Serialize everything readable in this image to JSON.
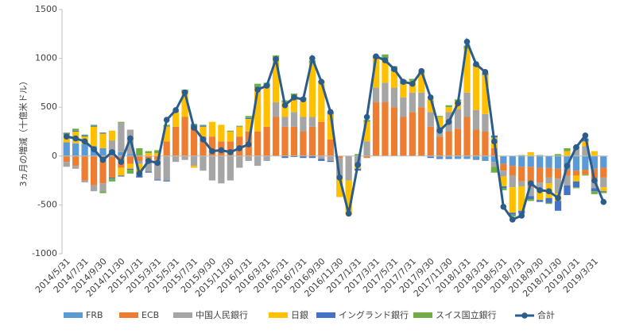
{
  "chart_data": {
    "type": "bar",
    "stacked": true,
    "y_label": "3ヵ月の増減（十億米ドル）",
    "categories": [
      "2014/5/31",
      null,
      "2014/7/31",
      null,
      "2014/9/30",
      null,
      "2014/11/30",
      null,
      "2015/1/31",
      null,
      "2015/3/31",
      null,
      "2015/5/31",
      null,
      "2015/7/31",
      null,
      "2015/9/30",
      null,
      "2015/11/30",
      null,
      "2016/1/31",
      null,
      "2016/3/31",
      null,
      "2016/5/31",
      null,
      "2016/7/31",
      null,
      "2016/9/30",
      null,
      "2016/11/30",
      null,
      "2017/1/31",
      null,
      "2017/3/31",
      null,
      "2017/5/31",
      null,
      "2017/7/31",
      null,
      "2017/9/30",
      null,
      "2017/11/30",
      null,
      "2018/1/31",
      null,
      "2018/3/31",
      null,
      "2018/5/31",
      null,
      "2018/7/31",
      null,
      "2018/9/30",
      null,
      "2018/11/30",
      null,
      "2019/1/31",
      null,
      "2019/3/31",
      null
    ],
    "series": [
      {
        "name": "FRB",
        "color": "#5b9bd5",
        "values": [
          140,
          130,
          120,
          100,
          80,
          60,
          40,
          20,
          0,
          0,
          0,
          0,
          0,
          0,
          0,
          0,
          0,
          0,
          0,
          0,
          0,
          0,
          0,
          0,
          0,
          0,
          0,
          0,
          0,
          0,
          0,
          0,
          0,
          0,
          0,
          0,
          0,
          0,
          0,
          0,
          -10,
          -20,
          -20,
          -30,
          -30,
          -40,
          -50,
          -60,
          -80,
          -100,
          -110,
          -110,
          -120,
          -120,
          -130,
          -140,
          -150,
          -140,
          -130,
          -120
        ]
      },
      {
        "name": "ECB",
        "color": "#ed7d31",
        "values": [
          -60,
          -100,
          -250,
          -300,
          -280,
          -220,
          -120,
          -80,
          -50,
          -60,
          -40,
          150,
          300,
          400,
          300,
          200,
          200,
          150,
          150,
          200,
          250,
          250,
          300,
          400,
          300,
          300,
          250,
          300,
          350,
          170,
          -20,
          0,
          0,
          -20,
          550,
          550,
          500,
          400,
          450,
          500,
          300,
          200,
          250,
          280,
          400,
          270,
          250,
          80,
          -70,
          -100,
          -150,
          -200,
          -150,
          -100,
          -100,
          -60,
          -50,
          -50,
          -100,
          -100
        ]
      },
      {
        "name": "中国人民銀行",
        "color": "#a5a5a5",
        "values": [
          -50,
          -30,
          -20,
          -60,
          -80,
          100,
          300,
          250,
          -30,
          -100,
          -200,
          -250,
          -60,
          -40,
          -100,
          -150,
          -250,
          -280,
          -250,
          -120,
          -50,
          -100,
          -50,
          150,
          100,
          150,
          150,
          100,
          -30,
          -50,
          -200,
          -250,
          -100,
          150,
          150,
          200,
          200,
          200,
          200,
          150,
          150,
          100,
          200,
          200,
          250,
          200,
          180,
          -50,
          -60,
          -120,
          -50,
          -100,
          -80,
          -60,
          -150,
          -100,
          100,
          100,
          -100,
          -100
        ]
      },
      {
        "name": "日銀",
        "color": "#ffc000",
        "values": [
          80,
          120,
          80,
          200,
          150,
          100,
          -80,
          -50,
          -120,
          30,
          30,
          150,
          150,
          250,
          -20,
          100,
          150,
          170,
          100,
          100,
          130,
          450,
          420,
          450,
          150,
          160,
          180,
          550,
          400,
          260,
          -200,
          -350,
          -30,
          200,
          300,
          250,
          170,
          140,
          120,
          200,
          130,
          100,
          50,
          80,
          450,
          450,
          400,
          110,
          -100,
          -260,
          -250,
          40,
          -100,
          -150,
          -80,
          50,
          -60,
          50,
          50,
          -40
        ]
      },
      {
        "name": "イングランド銀行",
        "color": "#4472c4",
        "values": [
          10,
          10,
          10,
          10,
          10,
          -10,
          -10,
          -10,
          -20,
          -10,
          -10,
          -10,
          0,
          20,
          20,
          10,
          0,
          0,
          0,
          0,
          10,
          10,
          10,
          10,
          -20,
          -10,
          -20,
          -20,
          -20,
          -10,
          0,
          0,
          -20,
          0,
          10,
          10,
          10,
          10,
          0,
          0,
          -10,
          -10,
          -10,
          0,
          0,
          0,
          10,
          20,
          -20,
          -20,
          -30,
          -30,
          -20,
          -50,
          -100,
          -100,
          -60,
          30,
          -30,
          -10
        ]
      },
      {
        "name": "スイス国立銀行",
        "color": "#70ad47",
        "values": [
          10,
          20,
          10,
          10,
          -20,
          -30,
          10,
          -40,
          80,
          20,
          30,
          20,
          10,
          10,
          10,
          10,
          0,
          0,
          10,
          10,
          20,
          30,
          20,
          20,
          20,
          30,
          20,
          30,
          20,
          20,
          0,
          0,
          20,
          20,
          20,
          30,
          40,
          30,
          20,
          10,
          0,
          10,
          20,
          20,
          30,
          20,
          10,
          -60,
          -20,
          -20,
          10,
          -20,
          10,
          -10,
          20,
          30,
          -10,
          -10,
          -30,
          -10
        ]
      }
    ],
    "line": {
      "name": "合計",
      "color": "#2a5d8c",
      "values": [
        200,
        180,
        150,
        70,
        -40,
        40,
        -60,
        180,
        -180,
        -50,
        -70,
        370,
        470,
        650,
        290,
        170,
        50,
        60,
        40,
        80,
        120,
        680,
        720,
        990,
        520,
        600,
        580,
        1000,
        760,
        450,
        -220,
        -590,
        -90,
        400,
        1020,
        980,
        890,
        760,
        740,
        870,
        600,
        260,
        350,
        540,
        1170,
        940,
        860,
        150,
        -520,
        -650,
        -610,
        -280,
        -350,
        -360,
        -430,
        -100,
        90,
        210,
        -250,
        -470
      ]
    },
    "ylim": [
      -1000,
      1500
    ],
    "yticks": [
      -1000,
      -500,
      0,
      500,
      1000,
      1500
    ],
    "legend": "bottom"
  }
}
